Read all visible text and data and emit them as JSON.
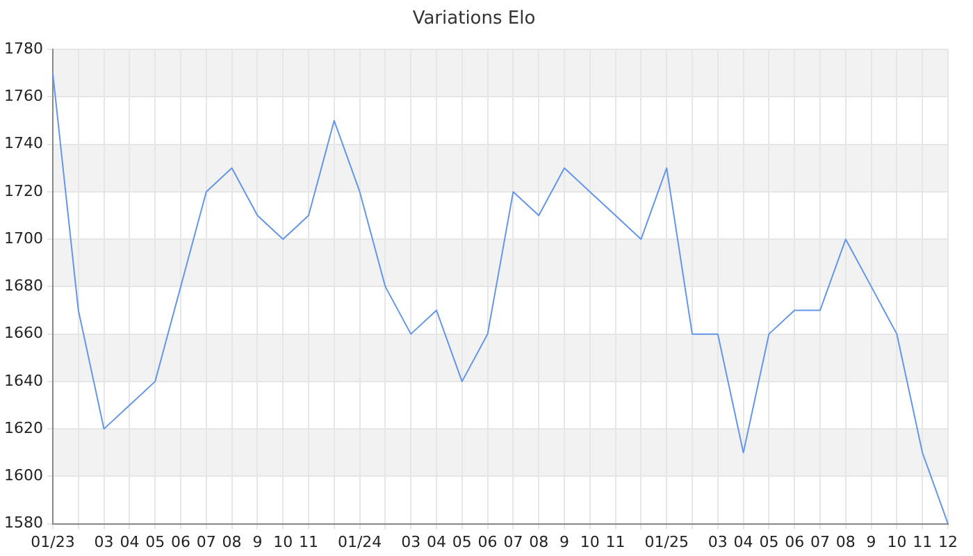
{
  "chart_data": {
    "type": "line",
    "title": "Variations Elo",
    "categories": [
      "01/23",
      null,
      "03",
      "04",
      "05",
      "06",
      "07",
      "08",
      "9",
      "10",
      "11",
      null,
      "01/24",
      null,
      "03",
      "04",
      "05",
      "06",
      "07",
      "08",
      "9",
      "10",
      "11",
      null,
      "01/25",
      null,
      "03",
      "04",
      "05",
      "06",
      "07",
      "08",
      "9",
      "10",
      "11",
      "12"
    ],
    "series": [
      {
        "color": "#6495ed",
        "values": [
          1770,
          1670,
          1620,
          1630,
          1640,
          1680,
          1720,
          1730,
          1710,
          1700,
          1710,
          1750,
          1720,
          1680,
          1660,
          1670,
          1640,
          1660,
          1720,
          1710,
          1730,
          1720,
          1710,
          1700,
          1730,
          1660,
          1660,
          1610,
          1660,
          1670,
          1670,
          1700,
          1680,
          1660,
          1610,
          1580
        ]
      }
    ],
    "ylim": [
      1580,
      1780
    ],
    "yticks": [
      1580,
      1600,
      1620,
      1640,
      1660,
      1680,
      1700,
      1720,
      1740,
      1760,
      1780
    ],
    "grid": true,
    "legend": false,
    "marker": "none",
    "line_style": "solid"
  }
}
